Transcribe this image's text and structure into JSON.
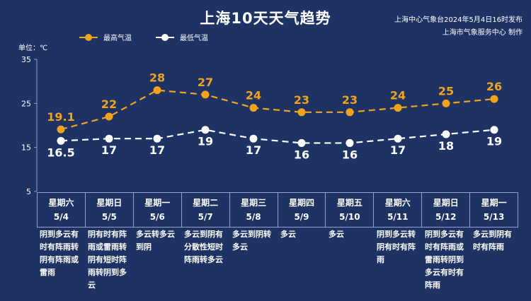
{
  "header": {
    "title": "上海10天天气趋势",
    "source_line1": "上海中心气象台2024年5月4日16时发布",
    "source_line2": "上海市气象服务中心 制作"
  },
  "legend": {
    "high_label": "最高气温",
    "low_label": "最低气温"
  },
  "unit_label": "单位：℃",
  "colors": {
    "background": "#1f3264",
    "high": "#f0a41c",
    "low": "#ffffff",
    "grid": "#8fa3cc"
  },
  "chart_data": {
    "type": "line",
    "title": "上海10天天气趋势",
    "ylabel": "单位：℃",
    "ylim": [
      5,
      35
    ],
    "yticks": [
      5,
      15,
      25,
      35
    ],
    "categories": [
      "5/4",
      "5/5",
      "5/6",
      "5/7",
      "5/8",
      "5/9",
      "5/10",
      "5/11",
      "5/12",
      "5/13"
    ],
    "series": [
      {
        "name": "最高气温",
        "values": [
          19.1,
          22,
          28,
          27,
          24,
          23,
          23,
          24,
          25,
          26
        ],
        "labels": [
          "19.1",
          "22",
          "28",
          "27",
          "24",
          "23",
          "23",
          "24",
          "25",
          "26"
        ]
      },
      {
        "name": "最低气温",
        "values": [
          16.5,
          17,
          17,
          19,
          17,
          16,
          16,
          17,
          18,
          19
        ],
        "labels": [
          "16.5",
          "17",
          "17",
          "19",
          "17",
          "16",
          "16",
          "17",
          "18",
          "19"
        ]
      }
    ],
    "legend_position": "top-left",
    "grid": false
  },
  "days": [
    {
      "weekday": "星期六",
      "date": "5/4",
      "weather": "阴到多云有时有阵雨转阴有阵雨或雷雨"
    },
    {
      "weekday": "星期日",
      "date": "5/5",
      "weather": "阴有时有阵雨或雷雨转阴有短时阵雨转阴到多云"
    },
    {
      "weekday": "星期一",
      "date": "5/6",
      "weather": "多云转多云到阴"
    },
    {
      "weekday": "星期二",
      "date": "5/7",
      "weather": "多云到阴有分散性短时阵雨转多云"
    },
    {
      "weekday": "星期三",
      "date": "5/8",
      "weather": "多云到阴转多云"
    },
    {
      "weekday": "星期四",
      "date": "5/9",
      "weather": "多云"
    },
    {
      "weekday": "星期五",
      "date": "5/10",
      "weather": "多云"
    },
    {
      "weekday": "星期六",
      "date": "5/11",
      "weather": "阴到多云转阴有时有阵雨"
    },
    {
      "weekday": "星期日",
      "date": "5/12",
      "weather": "阴到多云有时有阵雨或雷雨转阴到多云有时有阵雨"
    },
    {
      "weekday": "星期一",
      "date": "5/13",
      "weather": "多云到阴有时有阵雨"
    }
  ]
}
